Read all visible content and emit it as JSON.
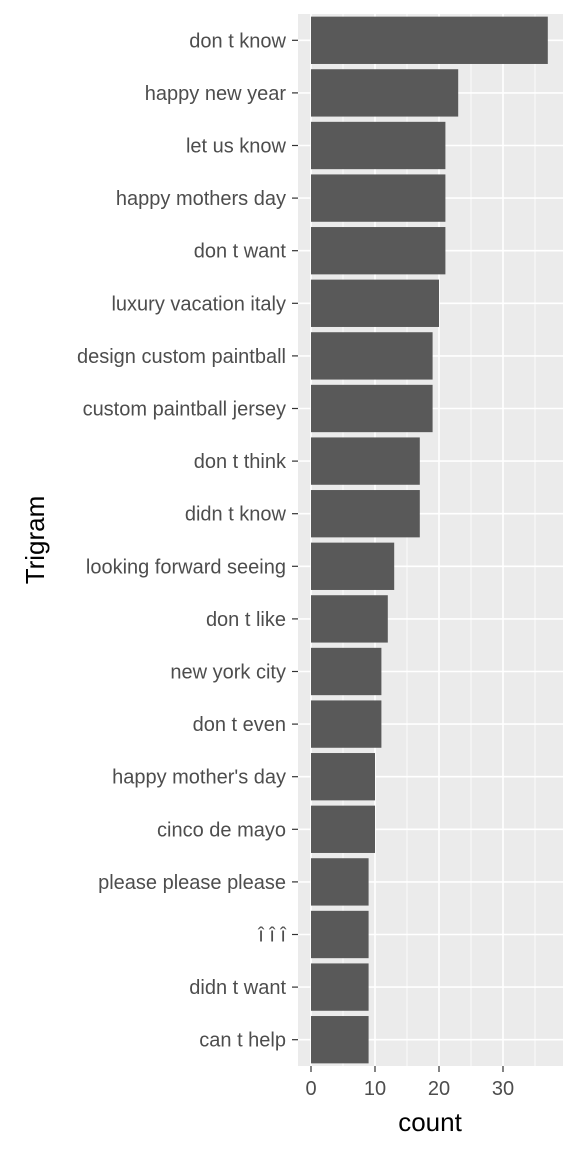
{
  "chart_data": {
    "type": "bar",
    "orientation": "horizontal",
    "title": "",
    "xlabel": "count",
    "ylabel": "Trigram",
    "xlim": [
      0,
      39
    ],
    "x_ticks": [
      0,
      10,
      20,
      30
    ],
    "grid": true,
    "bar_color": "#595959",
    "panel_color": "#ebebeb",
    "grid_color": "#ffffff",
    "categories": [
      "don t know",
      "happy new year",
      "let us know",
      "happy mothers day",
      "don t want",
      "luxury vacation italy",
      "design custom paintball",
      "custom paintball jersey",
      "don t think",
      "didn t know",
      "looking forward seeing",
      "don t like",
      "new york city",
      "don t even",
      "happy mother's day",
      "cinco de mayo",
      "please please please",
      "î î î",
      "didn t want",
      "can t help"
    ],
    "values": [
      37,
      23,
      21,
      21,
      21,
      20,
      19,
      19,
      17,
      17,
      13,
      12,
      11,
      11,
      10,
      10,
      9,
      9,
      9,
      9
    ]
  }
}
